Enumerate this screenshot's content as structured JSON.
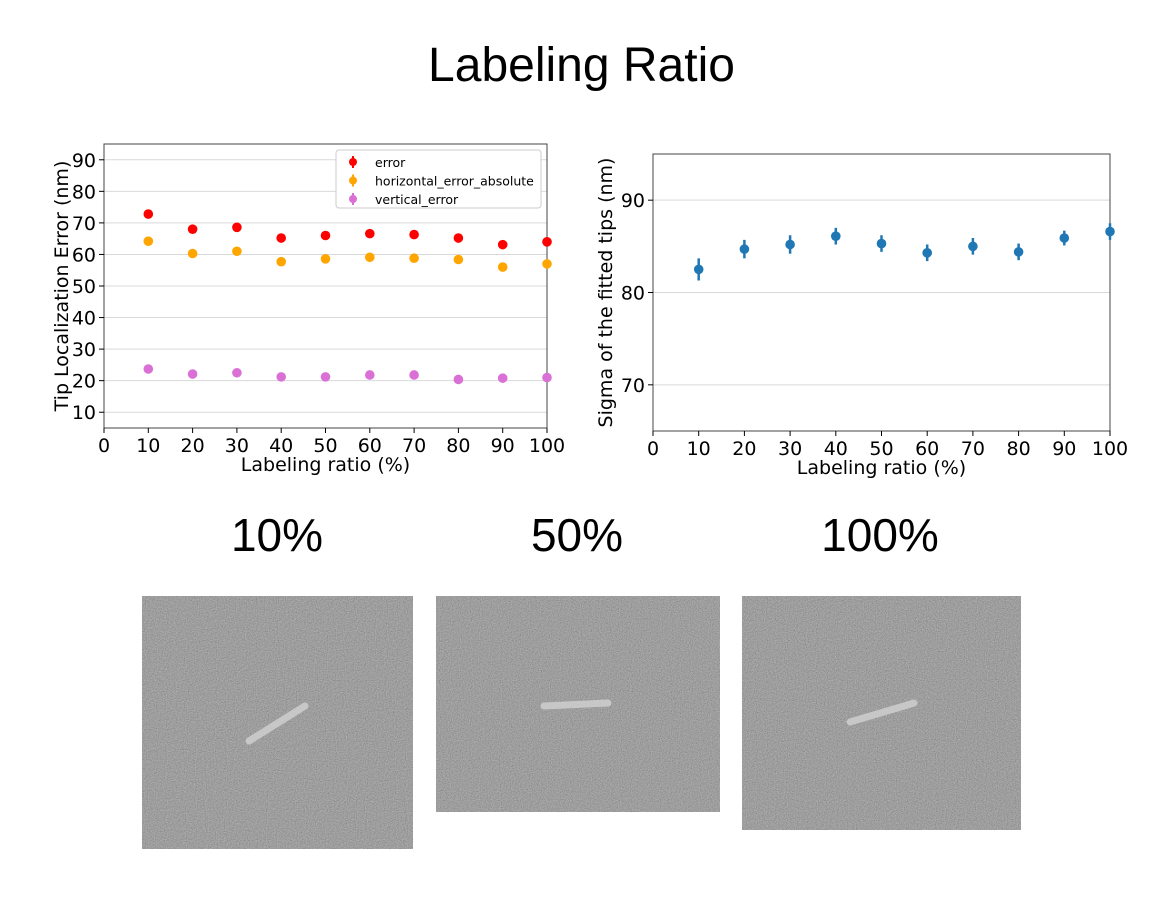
{
  "title": "Labeling Ratio",
  "chart_data": [
    {
      "type": "scatter",
      "xlabel": "Labeling ratio (%)",
      "ylabel": "Tip Localization Error (nm)",
      "xlim": [
        0,
        100
      ],
      "ylim": [
        5,
        95
      ],
      "xticks": [
        "0",
        "10",
        "20",
        "30",
        "40",
        "50",
        "60",
        "70",
        "80",
        "90",
        "100"
      ],
      "yticks": [
        "10",
        "20",
        "30",
        "40",
        "50",
        "60",
        "70",
        "80",
        "90"
      ],
      "grid": "horizontal",
      "legend_position": "top-right",
      "x": [
        10,
        20,
        30,
        40,
        50,
        60,
        70,
        80,
        90,
        100
      ],
      "series": [
        {
          "name": "error",
          "color": "#ff0000",
          "values": [
            72.8,
            68.0,
            68.6,
            65.2,
            66.0,
            66.6,
            66.3,
            65.2,
            63.1,
            64.0
          ],
          "err": [
            1.2,
            1.0,
            1.0,
            1.0,
            1.0,
            1.0,
            1.0,
            1.0,
            1.0,
            1.0
          ]
        },
        {
          "name": "horizontal_error_absolute",
          "color": "#ffa500",
          "values": [
            64.2,
            60.3,
            61.0,
            57.7,
            58.6,
            59.1,
            58.8,
            58.4,
            56.0,
            57.0
          ],
          "err": [
            1.0,
            1.0,
            1.0,
            1.0,
            1.0,
            1.0,
            1.0,
            1.0,
            1.0,
            1.0
          ]
        },
        {
          "name": "vertical_error",
          "color": "#da70d6",
          "values": [
            23.7,
            22.1,
            22.5,
            21.2,
            21.2,
            21.8,
            21.8,
            20.4,
            20.8,
            21.0
          ],
          "err": [
            0.8,
            0.6,
            0.6,
            0.6,
            0.6,
            0.6,
            0.6,
            0.6,
            0.6,
            0.6
          ]
        }
      ]
    },
    {
      "type": "scatter",
      "xlabel": "Labeling ratio (%)",
      "ylabel": "Sigma of the fitted tips (nm)",
      "xlim": [
        0,
        100
      ],
      "ylim": [
        65,
        95
      ],
      "xticks": [
        "0",
        "10",
        "20",
        "30",
        "40",
        "50",
        "60",
        "70",
        "80",
        "90",
        "100"
      ],
      "yticks": [
        "70",
        "80",
        "90"
      ],
      "grid": "horizontal",
      "x": [
        10,
        20,
        30,
        40,
        50,
        60,
        70,
        80,
        90,
        100
      ],
      "series": [
        {
          "color": "#1f77b4",
          "values": [
            82.5,
            84.7,
            85.2,
            86.1,
            85.3,
            84.3,
            85.0,
            84.4,
            85.9,
            86.6
          ],
          "err": [
            1.2,
            1.0,
            1.0,
            0.9,
            0.9,
            0.9,
            0.9,
            0.9,
            0.8,
            0.9
          ]
        }
      ]
    }
  ],
  "captions": [
    "10%",
    "50%",
    "100%"
  ]
}
